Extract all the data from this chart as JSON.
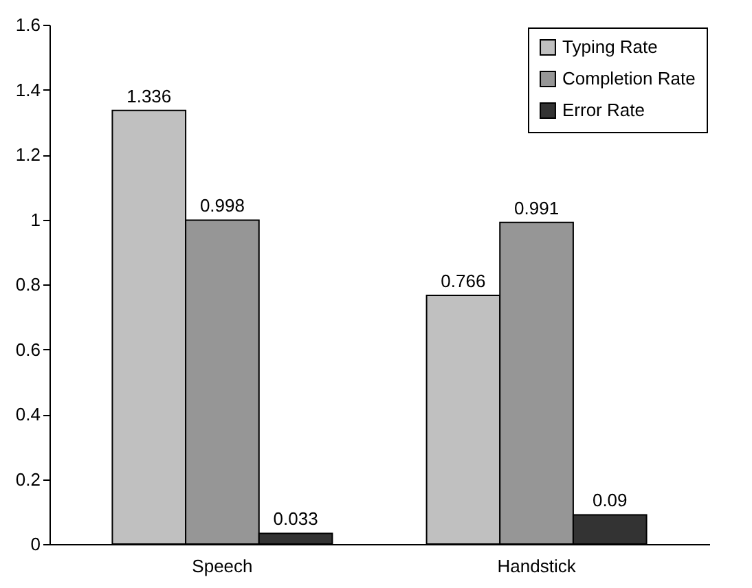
{
  "chart_data": {
    "type": "bar",
    "categories": [
      "Speech",
      "Handstick"
    ],
    "series": [
      {
        "name": "Typing Rate",
        "color": "#c0c0c0",
        "values": [
          1.336,
          0.766
        ]
      },
      {
        "name": "Completion Rate",
        "color": "#969696",
        "values": [
          0.998,
          0.991
        ]
      },
      {
        "name": "Error Rate",
        "color": "#333333",
        "values": [
          0.033,
          0.09
        ]
      }
    ],
    "ylim": [
      0,
      1.6
    ],
    "yticks": [
      0,
      0.2,
      0.4,
      0.6,
      0.8,
      1,
      1.2,
      1.4,
      1.6
    ],
    "data_labels": true,
    "legend": "top right",
    "grid": false
  }
}
